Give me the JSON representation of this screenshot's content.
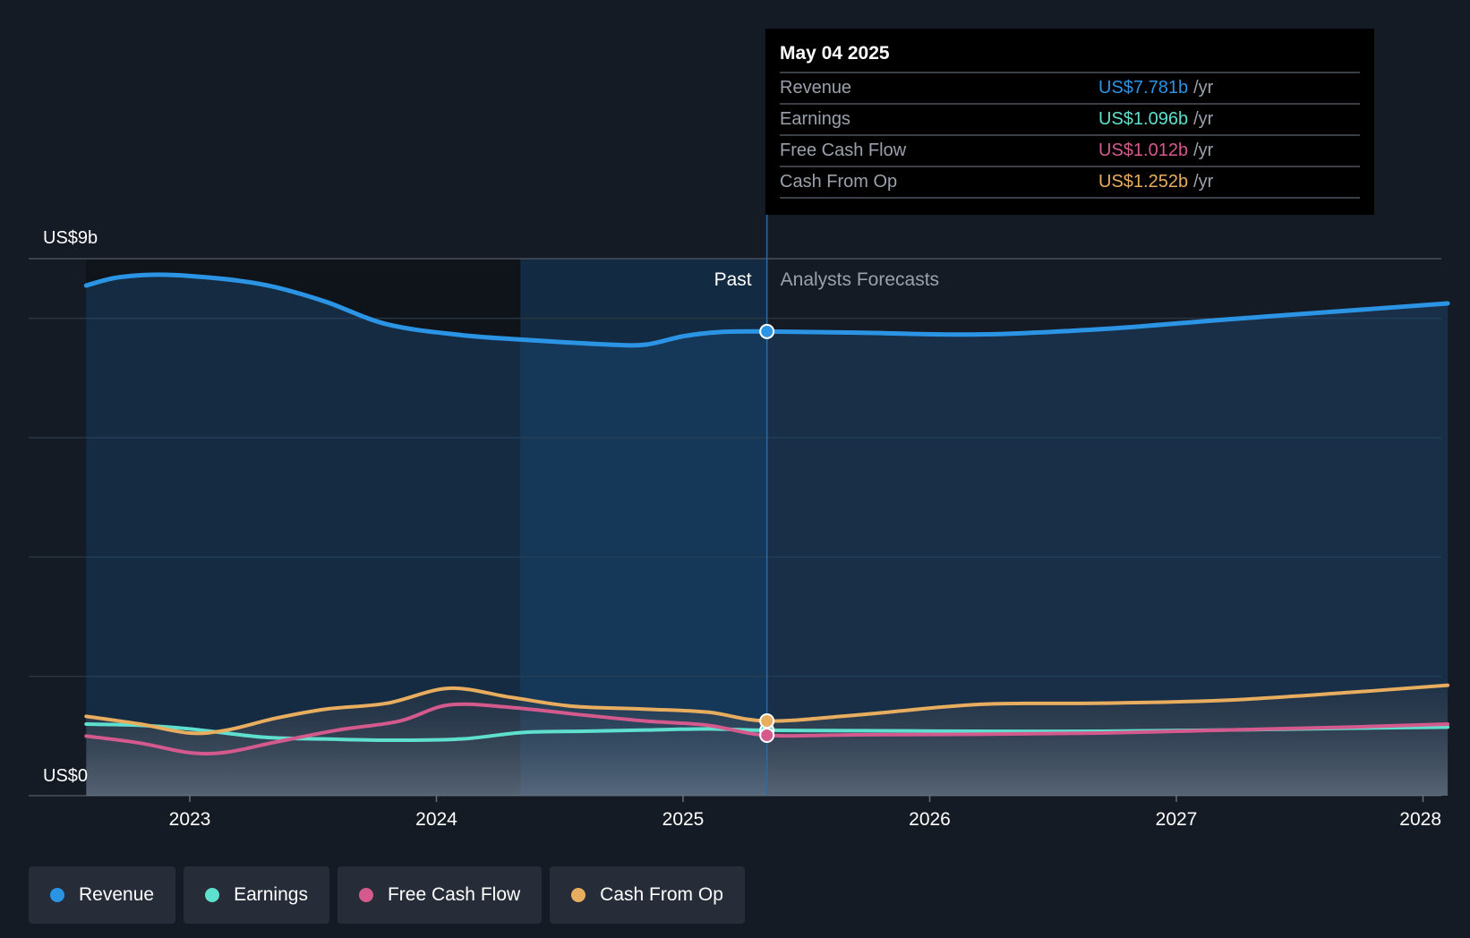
{
  "chart_data": {
    "type": "area",
    "y_axis_labels": {
      "top": "US$9b",
      "bottom": "US$0"
    },
    "ylim": [
      0,
      9
    ],
    "x_ticks": [
      "2023",
      "2024",
      "2025",
      "2026",
      "2027",
      "2028"
    ],
    "zones": {
      "past_label": "Past",
      "forecast_label": "Analysts Forecasts"
    },
    "divider_date": 2025.34,
    "series": [
      {
        "name": "Revenue",
        "color": "#2b94e4",
        "x": [
          2022.58,
          2022.7,
          2022.85,
          2023.0,
          2023.2,
          2023.35,
          2023.55,
          2023.8,
          2024.1,
          2024.4,
          2024.7,
          2024.85,
          2025.0,
          2025.15,
          2025.34,
          2025.7,
          2026.2,
          2026.7,
          2027.2,
          2027.7,
          2028.1
        ],
        "values": [
          8.55,
          8.68,
          8.73,
          8.71,
          8.63,
          8.52,
          8.28,
          7.9,
          7.72,
          7.63,
          7.56,
          7.56,
          7.7,
          7.77,
          7.78,
          7.76,
          7.73,
          7.82,
          7.98,
          8.13,
          8.25
        ]
      },
      {
        "name": "Earnings",
        "color": "#5fe0cf",
        "x": [
          2022.58,
          2022.8,
          2023.0,
          2023.3,
          2023.55,
          2023.8,
          2024.1,
          2024.35,
          2024.6,
          2024.85,
          2025.1,
          2025.34,
          2025.7,
          2026.2,
          2026.7,
          2027.2,
          2027.7,
          2028.1
        ],
        "values": [
          1.2,
          1.18,
          1.12,
          0.98,
          0.95,
          0.93,
          0.95,
          1.06,
          1.08,
          1.1,
          1.12,
          1.096,
          1.09,
          1.08,
          1.08,
          1.1,
          1.13,
          1.15
        ]
      },
      {
        "name": "Free Cash Flow",
        "color": "#d45a8e",
        "x": [
          2022.58,
          2022.8,
          2023.0,
          2023.15,
          2023.35,
          2023.6,
          2023.85,
          2024.05,
          2024.3,
          2024.6,
          2024.85,
          2025.1,
          2025.34,
          2025.7,
          2026.2,
          2026.7,
          2027.2,
          2027.7,
          2028.1
        ],
        "values": [
          1.0,
          0.88,
          0.72,
          0.73,
          0.9,
          1.1,
          1.25,
          1.52,
          1.48,
          1.35,
          1.25,
          1.18,
          1.012,
          1.02,
          1.03,
          1.05,
          1.1,
          1.15,
          1.2
        ]
      },
      {
        "name": "Cash From Op",
        "color": "#e8ad5e",
        "x": [
          2022.58,
          2022.8,
          2023.0,
          2023.15,
          2023.35,
          2023.55,
          2023.8,
          2024.05,
          2024.3,
          2024.55,
          2024.85,
          2025.1,
          2025.34,
          2025.7,
          2026.2,
          2026.7,
          2027.2,
          2027.7,
          2028.1
        ],
        "values": [
          1.33,
          1.2,
          1.05,
          1.1,
          1.3,
          1.45,
          1.55,
          1.8,
          1.65,
          1.5,
          1.45,
          1.4,
          1.252,
          1.35,
          1.53,
          1.55,
          1.6,
          1.73,
          1.85
        ]
      }
    ],
    "tooltip": {
      "date": "May 04 2025",
      "rows": [
        {
          "name": "Revenue",
          "value": "US$7.781b",
          "unit": "/yr",
          "color": "#2b94e4"
        },
        {
          "name": "Earnings",
          "value": "US$1.096b",
          "unit": "/yr",
          "color": "#5fe0cf"
        },
        {
          "name": "Free Cash Flow",
          "value": "US$1.012b",
          "unit": "/yr",
          "color": "#d45a8e"
        },
        {
          "name": "Cash From Op",
          "value": "US$1.252b",
          "unit": "/yr",
          "color": "#e8ad5e"
        }
      ]
    }
  },
  "legend": [
    {
      "label": "Revenue",
      "color": "#2b94e4"
    },
    {
      "label": "Earnings",
      "color": "#5fe0cf"
    },
    {
      "label": "Free Cash Flow",
      "color": "#d45a8e"
    },
    {
      "label": "Cash From Op",
      "color": "#e8ad5e"
    }
  ]
}
